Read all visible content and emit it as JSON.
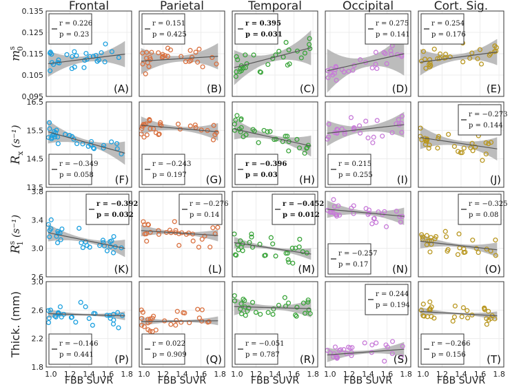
{
  "chart_data": {
    "type": "scatter",
    "layout": "4 rows x 5 columns grid of scatter panels with linear fit and confidence band",
    "x_axis": {
      "label": "FBB SUVR",
      "range": [
        0.95,
        1.85
      ],
      "ticks": [
        1.0,
        1.2,
        1.4,
        1.6,
        1.8
      ],
      "tick_labels": [
        "1.0",
        "1.2",
        "1.4",
        "1.6",
        "1.8"
      ]
    },
    "columns": [
      {
        "title": "Frontal",
        "color": "#1a9fdf"
      },
      {
        "title": "Parietal",
        "color": "#d9703f"
      },
      {
        "title": "Temporal",
        "color": "#3aa43a"
      },
      {
        "title": "Occipital",
        "color": "#c77ad8"
      },
      {
        "title": "Cort. Sig.",
        "color": "#b8961e"
      }
    ],
    "rows": [
      {
        "ylabel": "m",
        "ylabel_sup": "s",
        "ylabel_sub": "0",
        "ylabel_unit": "",
        "ylim": [
          0.095,
          0.135
        ],
        "yticks": [
          0.095,
          0.105,
          0.115,
          0.125,
          0.135
        ],
        "ytick_labels": [
          "0.095",
          "0.105",
          "0.115",
          "0.125",
          "0.135"
        ]
      },
      {
        "ylabel": "R",
        "ylabel_sup": "",
        "ylabel_sub": "x",
        "ylabel_unit": " (s⁻¹)",
        "ylim": [
          13.5,
          16.5
        ],
        "yticks": [
          13.5,
          14.5,
          15.5,
          16.5
        ],
        "ytick_labels": [
          "13.5",
          "14.5",
          "15.5",
          "16.5"
        ]
      },
      {
        "ylabel": "R",
        "ylabel_sup": "s",
        "ylabel_sub": "1",
        "ylabel_unit": " (s⁻¹)",
        "ylim": [
          2.6,
          3.8
        ],
        "yticks": [
          2.6,
          3.0,
          3.4,
          3.8
        ],
        "ytick_labels": [
          "2.6",
          "3.0",
          "3.4",
          "3.8"
        ]
      },
      {
        "ylabel": "Thick. (mm)",
        "ylabel_sup": "",
        "ylabel_sub": "",
        "ylabel_unit": "",
        "ylim": [
          1.8,
          3.0
        ],
        "yticks": [
          1.8,
          2.2,
          2.6,
          3.0
        ],
        "ytick_labels": [
          "1.8",
          "2.2",
          "2.6",
          "3.0"
        ]
      }
    ],
    "panels": [
      {
        "row": 0,
        "col": 0,
        "letter": "(A)",
        "r": "r = 0.226",
        "p": "p = 0.23",
        "bold": false,
        "legend": "top-left",
        "fit": [
          0.1103,
          0.1148
        ],
        "band": 0.003
      },
      {
        "row": 0,
        "col": 1,
        "letter": "(B)",
        "r": "r = 0.151",
        "p": "p = 0.425",
        "bold": false,
        "legend": "top-left",
        "fit": [
          0.1115,
          0.1138
        ],
        "band": 0.003
      },
      {
        "row": 0,
        "col": 2,
        "letter": "(C)",
        "r": "r = 0.395",
        "p": "p = 0.031",
        "bold": true,
        "legend": "top-left",
        "fit": [
          0.1085,
          0.1178
        ],
        "band": 0.004
      },
      {
        "row": 0,
        "col": 3,
        "letter": "(D)",
        "r": "r = 0.275",
        "p": "p = 0.141",
        "bold": false,
        "legend": "top-right",
        "fit": [
          0.107,
          0.115
        ],
        "band": 0.005
      },
      {
        "row": 0,
        "col": 4,
        "letter": "(E)",
        "r": "r = 0.254",
        "p": "p = 0.176",
        "bold": false,
        "legend": "top-left",
        "fit": [
          0.111,
          0.1158
        ],
        "band": 0.003
      },
      {
        "row": 1,
        "col": 0,
        "letter": "(F)",
        "r": "r = −0.349",
        "p": "p = 0.058",
        "bold": false,
        "legend": "bottom-left",
        "fit": [
          15.45,
          14.7
        ],
        "band": 0.2
      },
      {
        "row": 1,
        "col": 1,
        "letter": "(G)",
        "r": "r = −0.243",
        "p": "p = 0.197",
        "bold": false,
        "legend": "bottom-left",
        "fit": [
          15.68,
          15.45
        ],
        "band": 0.15
      },
      {
        "row": 1,
        "col": 2,
        "letter": "(H)",
        "r": "r = −0.396",
        "p": "p = 0.03",
        "bold": true,
        "legend": "bottom-left",
        "fit": [
          15.55,
          14.95
        ],
        "band": 0.18
      },
      {
        "row": 1,
        "col": 3,
        "letter": "(I)",
        "r": "r = 0.215",
        "p": "p = 0.255",
        "bold": false,
        "legend": "bottom-left",
        "fit": [
          15.4,
          15.7
        ],
        "band": 0.22
      },
      {
        "row": 1,
        "col": 4,
        "letter": "(J)",
        "r": "r = −0.273",
        "p": "p = 0.144",
        "bold": false,
        "legend": "top-right",
        "fit": [
          15.25,
          14.85
        ],
        "band": 0.2
      },
      {
        "row": 2,
        "col": 0,
        "letter": "(K)",
        "r": "r = −0.392",
        "p": "p = 0.032",
        "bold": true,
        "legend": "top-right",
        "fit": [
          3.22,
          3.0
        ],
        "band": 0.06
      },
      {
        "row": 2,
        "col": 1,
        "letter": "(L)",
        "r": "r = −0.276",
        "p": "p = 0.14",
        "bold": false,
        "legend": "top-right",
        "fit": [
          3.25,
          3.18
        ],
        "band": 0.04
      },
      {
        "row": 2,
        "col": 2,
        "letter": "(M)",
        "r": "r = −0.452",
        "p": "p = 0.012",
        "bold": true,
        "legend": "top-right",
        "fit": [
          3.08,
          2.92
        ],
        "band": 0.04
      },
      {
        "row": 2,
        "col": 3,
        "letter": "(N)",
        "r": "r = −0.257",
        "p": "p = 0.17",
        "bold": false,
        "legend": "bottom-left",
        "fit": [
          3.55,
          3.45
        ],
        "band": 0.06
      },
      {
        "row": 2,
        "col": 4,
        "letter": "(O)",
        "r": "r = −0.325",
        "p": "p = 0.08",
        "bold": false,
        "legend": "top-right",
        "fit": [
          3.1,
          2.98
        ],
        "band": 0.05
      },
      {
        "row": 3,
        "col": 0,
        "letter": "(P)",
        "r": "r = −0.146",
        "p": "p = 0.441",
        "bold": false,
        "legend": "bottom-left",
        "fit": [
          2.55,
          2.52
        ],
        "band": 0.03
      },
      {
        "row": 3,
        "col": 1,
        "letter": "(Q)",
        "r": "r = 0.022",
        "p": "p = 0.909",
        "bold": false,
        "legend": "bottom-left",
        "fit": [
          2.44,
          2.45
        ],
        "band": 0.03
      },
      {
        "row": 3,
        "col": 2,
        "letter": "(R)",
        "r": "r = −0.051",
        "p": "p = 0.787",
        "bold": false,
        "legend": "bottom-left",
        "fit": [
          2.65,
          2.62
        ],
        "band": 0.06
      },
      {
        "row": 3,
        "col": 3,
        "letter": "(S)",
        "r": "r = 0.244",
        "p": "p = 0.194",
        "bold": false,
        "legend": "top-right",
        "fit": [
          1.97,
          2.05
        ],
        "band": 0.05
      },
      {
        "row": 3,
        "col": 4,
        "letter": "(T)",
        "r": "r = −0.266",
        "p": "p = 0.156",
        "bold": false,
        "legend": "bottom-left",
        "fit": [
          2.58,
          2.52
        ],
        "band": 0.03
      }
    ],
    "point_x_range": [
      0.97,
      1.78
    ],
    "points_per_panel": 30,
    "note": "Individual scatter points approximated; each panel shows ~30 subjects scattered around its fitted line."
  }
}
